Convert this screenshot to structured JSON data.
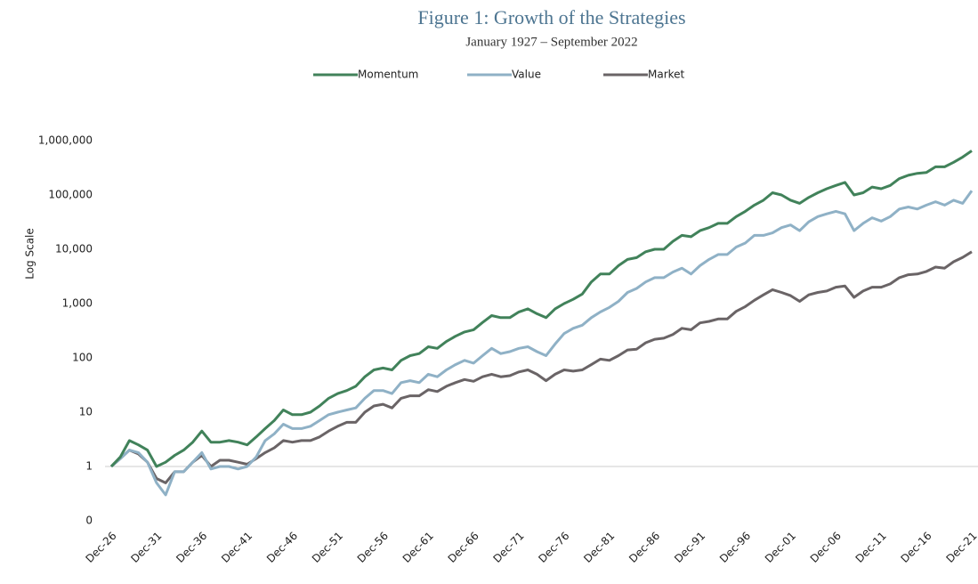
{
  "chart_data": {
    "type": "line",
    "title": "Figure 1: Growth of the Strategies",
    "subtitle": "January 1927 – September 2022",
    "y_label": "Log Scale",
    "log_scale": true,
    "grid": false,
    "legend_position": "top",
    "x_axis_at": 1,
    "categories": [
      "Dec-26",
      null,
      null,
      null,
      null,
      "Dec-31",
      null,
      null,
      null,
      null,
      "Dec-36",
      null,
      null,
      null,
      null,
      "Dec-41",
      null,
      null,
      null,
      null,
      "Dec-46",
      null,
      null,
      null,
      null,
      "Dec-51",
      null,
      null,
      null,
      null,
      "Dec-56",
      null,
      null,
      null,
      null,
      "Dec-61",
      null,
      null,
      null,
      null,
      "Dec-66",
      null,
      null,
      null,
      null,
      "Dec-71",
      null,
      null,
      null,
      null,
      "Dec-76",
      null,
      null,
      null,
      null,
      "Dec-81",
      null,
      null,
      null,
      null,
      "Dec-86",
      null,
      null,
      null,
      null,
      "Dec-91",
      null,
      null,
      null,
      null,
      "Dec-96",
      null,
      null,
      null,
      null,
      "Dec-01",
      null,
      null,
      null,
      null,
      "Dec-06",
      null,
      null,
      null,
      null,
      "Dec-11",
      null,
      null,
      null,
      null,
      "Dec-16",
      null,
      null,
      null,
      null,
      "Dec-21"
    ],
    "ylim": [
      0.1,
      1000000
    ],
    "yticks": [
      {
        "value": 0.1,
        "label": "0"
      },
      1,
      10,
      100,
      {
        "value": 1000,
        "label": "1,000"
      },
      {
        "value": 10000,
        "label": "10,000"
      },
      {
        "value": 100000,
        "label": "100,000"
      },
      {
        "value": 1000000,
        "label": "1,000,000"
      }
    ],
    "series": [
      {
        "name": "Momentum",
        "color": "#41825a",
        "values": [
          1,
          1.5,
          3,
          2.5,
          2,
          1,
          1.2,
          1.6,
          2,
          2.8,
          4.5,
          2.8,
          2.8,
          3,
          2.8,
          2.5,
          3.5,
          5,
          7,
          11,
          9,
          9,
          10,
          13,
          18,
          22,
          25,
          30,
          45,
          60,
          65,
          60,
          90,
          110,
          120,
          160,
          150,
          200,
          250,
          300,
          330,
          450,
          600,
          550,
          550,
          700,
          800,
          650,
          550,
          800,
          1000,
          1200,
          1500,
          2500,
          3500,
          3500,
          5000,
          6500,
          7000,
          9000,
          10000,
          10000,
          14000,
          18000,
          17000,
          22000,
          25000,
          30000,
          30000,
          40000,
          50000,
          65000,
          80000,
          110000,
          100000,
          80000,
          70000,
          90000,
          110000,
          130000,
          150000,
          170000,
          100000,
          110000,
          140000,
          130000,
          150000,
          200000,
          230000,
          250000,
          260000,
          330000,
          330000,
          400000,
          500000,
          650000
        ]
      },
      {
        "name": "Value",
        "color": "#8fb1c6",
        "values": [
          1,
          1.4,
          2,
          1.8,
          1.2,
          0.5,
          0.3,
          0.8,
          0.8,
          1.2,
          1.8,
          0.9,
          1,
          1,
          0.9,
          1,
          1.5,
          3,
          4,
          6,
          5,
          5,
          5.5,
          7,
          9,
          10,
          11,
          12,
          18,
          25,
          25,
          22,
          35,
          38,
          35,
          50,
          45,
          60,
          75,
          90,
          80,
          110,
          150,
          120,
          130,
          150,
          160,
          130,
          110,
          180,
          280,
          350,
          400,
          550,
          700,
          850,
          1100,
          1600,
          1900,
          2500,
          3000,
          3000,
          3800,
          4500,
          3500,
          5000,
          6500,
          8000,
          8000,
          11000,
          13000,
          18000,
          18000,
          20000,
          25000,
          28000,
          22000,
          32000,
          40000,
          45000,
          50000,
          45000,
          22000,
          30000,
          38000,
          33000,
          40000,
          55000,
          60000,
          55000,
          65000,
          75000,
          65000,
          80000,
          70000,
          120000
        ]
      },
      {
        "name": "Market",
        "color": "#6a6466",
        "values": [
          1,
          1.4,
          2,
          1.7,
          1.2,
          0.6,
          0.5,
          0.8,
          0.8,
          1.2,
          1.6,
          1,
          1.3,
          1.3,
          1.2,
          1.1,
          1.4,
          1.8,
          2.2,
          3,
          2.8,
          3,
          3,
          3.5,
          4.5,
          5.5,
          6.5,
          6.5,
          10,
          13,
          14,
          12,
          18,
          20,
          20,
          26,
          24,
          30,
          35,
          40,
          37,
          45,
          50,
          45,
          47,
          55,
          60,
          50,
          38,
          50,
          60,
          57,
          60,
          75,
          95,
          90,
          110,
          140,
          145,
          190,
          220,
          230,
          270,
          350,
          330,
          440,
          470,
          520,
          520,
          720,
          880,
          1150,
          1450,
          1800,
          1600,
          1400,
          1100,
          1450,
          1600,
          1700,
          2000,
          2100,
          1300,
          1700,
          2000,
          2000,
          2300,
          3000,
          3400,
          3500,
          3900,
          4700,
          4500,
          5900,
          7100,
          9000
        ]
      }
    ]
  }
}
